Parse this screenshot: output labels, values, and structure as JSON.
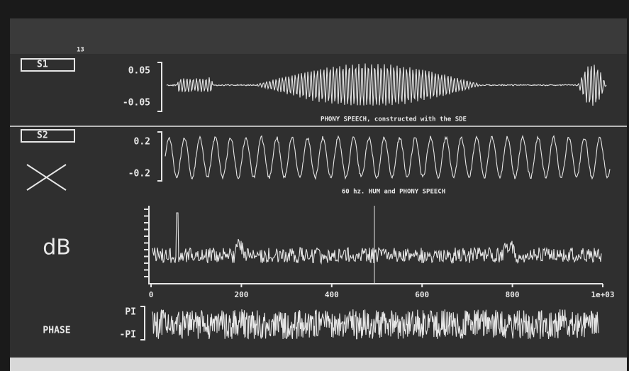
{
  "marker": "13",
  "panels": [
    {
      "label": "S1",
      "ticks": [
        "0.05",
        "-0.05"
      ],
      "caption": "PHONY SPEECH, constructed with the SDE"
    },
    {
      "label": "S2",
      "ticks": [
        "0.2",
        "-0.2"
      ],
      "caption": "60 hz. HUM and PHONY SPEECH"
    },
    {
      "label": "dB",
      "x_ticks": [
        "0",
        "200",
        "400",
        "600",
        "800",
        "1e+03"
      ]
    },
    {
      "label": "PHASE",
      "ticks": [
        "PI",
        "-PI"
      ]
    }
  ]
}
